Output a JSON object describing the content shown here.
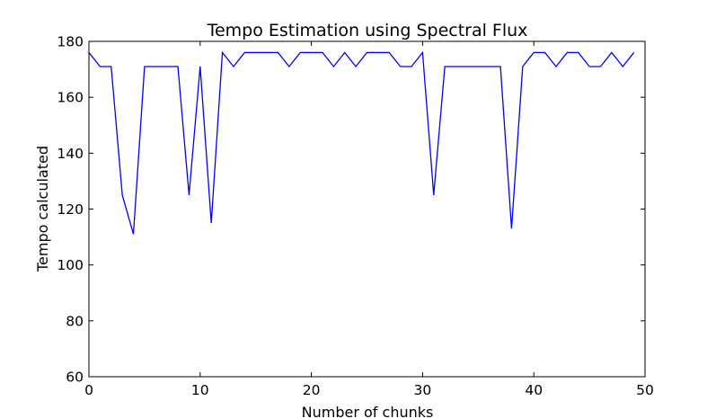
{
  "chart_data": {
    "type": "line",
    "title": "Tempo Estimation using Spectral Flux",
    "xlabel": "Number of chunks",
    "ylabel": "Tempo calculated",
    "xlim": [
      0,
      50
    ],
    "ylim": [
      60,
      180
    ],
    "xticks": [
      0,
      10,
      20,
      30,
      40,
      50
    ],
    "yticks": [
      60,
      80,
      100,
      120,
      140,
      160,
      180
    ],
    "grid": false,
    "line_color": "#0000ff",
    "x": [
      0,
      1,
      2,
      3,
      4,
      5,
      6,
      7,
      8,
      9,
      10,
      11,
      12,
      13,
      14,
      15,
      16,
      17,
      18,
      19,
      20,
      21,
      22,
      23,
      24,
      25,
      26,
      27,
      28,
      29,
      30,
      31,
      32,
      33,
      34,
      35,
      36,
      37,
      38,
      39,
      40,
      41,
      42,
      43,
      44,
      45,
      46,
      47,
      48,
      49
    ],
    "series": [
      {
        "values": [
          176,
          171,
          171,
          125,
          111,
          171,
          171,
          171,
          171,
          125,
          171,
          115,
          176,
          171,
          176,
          176,
          176,
          176,
          171,
          176,
          176,
          176,
          171,
          176,
          171,
          176,
          176,
          176,
          171,
          171,
          176,
          125,
          171,
          171,
          171,
          171,
          171,
          171,
          113,
          171,
          176,
          176,
          171,
          176,
          176,
          171,
          171,
          176,
          171,
          176
        ]
      }
    ]
  }
}
